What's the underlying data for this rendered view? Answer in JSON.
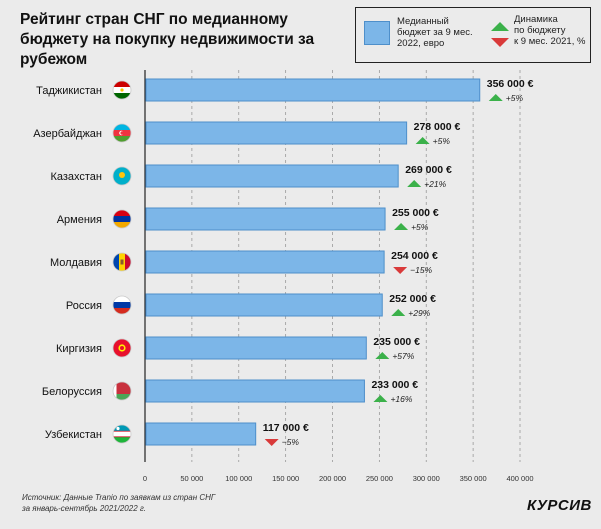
{
  "title": "Рейтинг стран СНГ по медианному бюджету на покупку недвижимости за рубежом",
  "legend": {
    "budget_line1": "Медианный",
    "budget_line2": "бюджет за 9 мес.",
    "budget_line3": "2022, евро",
    "dynamics_line1": "Динамика",
    "dynamics_line2": "по бюджету",
    "dynamics_line3": "к 9 мес. 2021, %"
  },
  "colors": {
    "bar": "#7cb6e8",
    "bar_border": "#4e8fca",
    "up": "#3bb14a",
    "down": "#d93a3a",
    "background": "#ebebeb"
  },
  "source_line1": "Источник: Данные Tranio по заявкам из стран СНГ",
  "source_line2": "за январь-сентябрь 2021/2022 г.",
  "logo": "КУРСИВ",
  "chart_data": {
    "type": "bar",
    "orientation": "horizontal",
    "categories": [
      "Таджикистан",
      "Азербайджан",
      "Казахстан",
      "Армения",
      "Молдавия",
      "Россия",
      "Киргизия",
      "Белоруссия",
      "Узбекистан"
    ],
    "values": [
      356000,
      278000,
      269000,
      255000,
      254000,
      252000,
      235000,
      233000,
      117000
    ],
    "value_labels": [
      "356 000 €",
      "278 000 €",
      "269 000 €",
      "255 000 €",
      "254 000 €",
      "252 000 €",
      "235 000 €",
      "233 000 €",
      "117 000 €"
    ],
    "dynamics": [
      {
        "label": "+5%",
        "direction": "up"
      },
      {
        "label": "+5%",
        "direction": "up"
      },
      {
        "label": "+21%",
        "direction": "up"
      },
      {
        "label": "+5%",
        "direction": "up"
      },
      {
        "label": "−15%",
        "direction": "down"
      },
      {
        "label": "+29%",
        "direction": "up"
      },
      {
        "label": "+57%",
        "direction": "up"
      },
      {
        "label": "+16%",
        "direction": "up"
      },
      {
        "label": "−5%",
        "direction": "down"
      }
    ],
    "flags": [
      "tajikistan",
      "azerbaijan",
      "kazakhstan",
      "armenia",
      "moldova",
      "russia",
      "kyrgyzstan",
      "belarus",
      "uzbekistan"
    ],
    "xlim": [
      0,
      400000
    ],
    "xticks": [
      0,
      50000,
      100000,
      150000,
      200000,
      250000,
      300000,
      350000,
      400000
    ],
    "xtick_labels": [
      "0",
      "50 000",
      "100 000",
      "150 000",
      "200 000",
      "250 000",
      "300 000",
      "350 000",
      "400 000"
    ],
    "grid": "vertical dashed",
    "legend_position": "top-right"
  }
}
